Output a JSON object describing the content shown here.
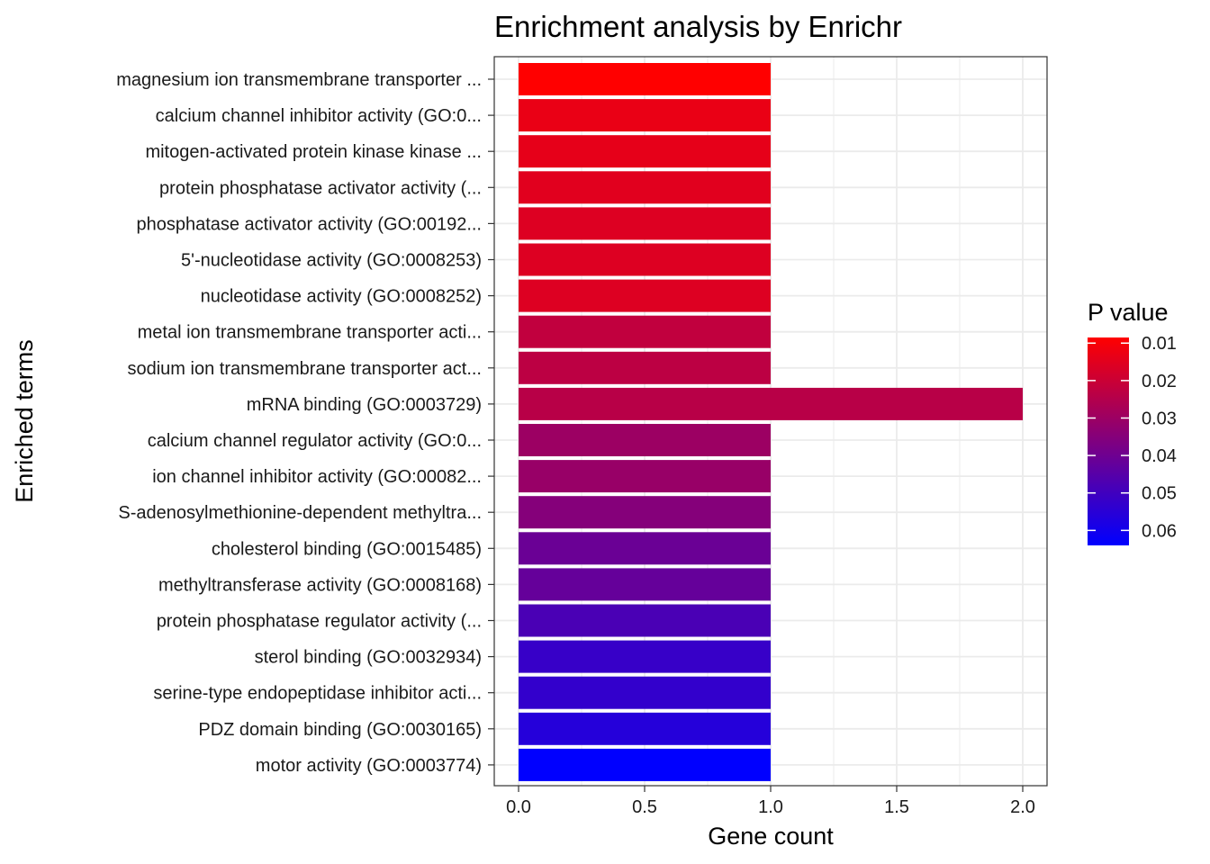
{
  "chart_data": {
    "type": "bar",
    "orientation": "horizontal",
    "title": "Enrichment analysis by Enrichr",
    "xlabel": "Gene count",
    "ylabel": "Enriched terms",
    "xlim": [
      0,
      2
    ],
    "xticks": [
      0.0,
      0.5,
      1.0,
      1.5,
      2.0
    ],
    "xtick_labels": [
      "0.0",
      "0.5",
      "1.0",
      "1.5",
      "2.0"
    ],
    "grid": true,
    "categories": [
      "magnesium ion transmembrane transporter ...",
      "calcium channel inhibitor activity (GO:0...",
      "mitogen-activated protein kinase kinase ...",
      "protein phosphatase activator activity (...",
      "phosphatase activator activity (GO:00192...",
      "5'-nucleotidase activity (GO:0008253)",
      "nucleotidase activity (GO:0008252)",
      "metal ion transmembrane transporter acti...",
      "sodium ion transmembrane transporter act...",
      "mRNA binding (GO:0003729)",
      "calcium channel regulator activity (GO:0...",
      "ion channel inhibitor activity (GO:00082...",
      "S-adenosylmethionine-dependent methyltra...",
      "cholesterol binding (GO:0015485)",
      "methyltransferase activity (GO:0008168)",
      "protein phosphatase regulator activity (...",
      "sterol binding (GO:0032934)",
      "serine-type endopeptidase inhibitor acti...",
      "PDZ domain binding (GO:0030165)",
      "motor activity (GO:0003774)"
    ],
    "values": [
      1,
      1,
      1,
      1,
      1,
      1,
      1,
      1,
      1,
      2,
      1,
      1,
      1,
      1,
      1,
      1,
      1,
      1,
      1,
      1
    ],
    "p_values": [
      0.0085,
      0.013,
      0.014,
      0.015,
      0.016,
      0.016,
      0.016,
      0.022,
      0.023,
      0.024,
      0.03,
      0.031,
      0.035,
      0.041,
      0.042,
      0.048,
      0.052,
      0.053,
      0.056,
      0.064
    ],
    "color_scale": {
      "title": "P value",
      "low_color": "#FF0000",
      "high_color": "#0000FF",
      "domain": [
        0.0085,
        0.064
      ],
      "ticks": [
        0.01,
        0.02,
        0.03,
        0.04,
        0.05,
        0.06
      ],
      "tick_labels": [
        "0.01",
        "0.02",
        "0.03",
        "0.04",
        "0.05",
        "0.06"
      ]
    },
    "legend_position": "right"
  }
}
